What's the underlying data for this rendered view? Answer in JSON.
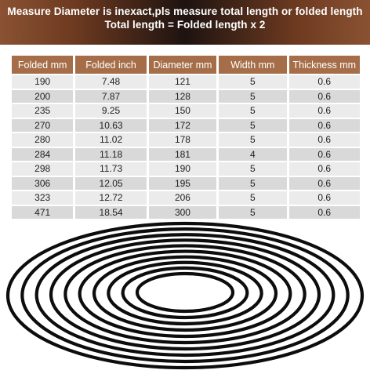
{
  "banner": {
    "line1": "Measure Diameter is inexact,pls measure total length or folded length",
    "line2": "Total length = Folded length x 2"
  },
  "table": {
    "headers": [
      "Folded mm",
      "Folded inch",
      "Diameter mm",
      "Width mm",
      "Thickness mm"
    ],
    "rows": [
      [
        "190",
        "7.48",
        "121",
        "5",
        "0.6"
      ],
      [
        "200",
        "7.87",
        "128",
        "5",
        "0.6"
      ],
      [
        "235",
        "9.25",
        "150",
        "5",
        "0.6"
      ],
      [
        "270",
        "10.63",
        "172",
        "5",
        "0.6"
      ],
      [
        "280",
        "11.02",
        "178",
        "5",
        "0.6"
      ],
      [
        "284",
        "11.18",
        "181",
        "4",
        "0.6"
      ],
      [
        "298",
        "11.73",
        "190",
        "5",
        "0.6"
      ],
      [
        "306",
        "12.05",
        "195",
        "5",
        "0.6"
      ],
      [
        "323",
        "12.72",
        "206",
        "5",
        "0.6"
      ],
      [
        "471",
        "18.54",
        "300",
        "5",
        "0.6"
      ]
    ]
  },
  "colors": {
    "header_bg": "#a66e48",
    "row_light": "#ebebeb",
    "row_dark": "#d9d9d9",
    "ring": "#0d0d0d"
  },
  "rings_image": {
    "ring_count": 10
  }
}
